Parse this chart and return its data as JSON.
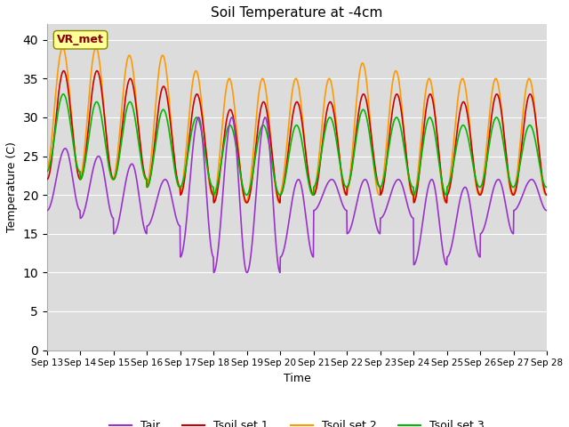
{
  "title": "Soil Temperature at -4cm",
  "xlabel": "Time",
  "ylabel": "Temperature (C)",
  "ylim": [
    0,
    42
  ],
  "yticks": [
    0,
    5,
    10,
    15,
    20,
    25,
    30,
    35,
    40
  ],
  "x_labels": [
    "Sep 13",
    "Sep 14",
    "Sep 15",
    "Sep 16",
    "Sep 17",
    "Sep 18",
    "Sep 19",
    "Sep 20",
    "Sep 21",
    "Sep 22",
    "Sep 23",
    "Sep 24",
    "Sep 25",
    "Sep 26",
    "Sep 27",
    "Sep 28"
  ],
  "color_tair": "#9933cc",
  "color_tsoil1": "#cc0000",
  "color_tsoil2": "#ff9900",
  "color_tsoil3": "#00bb00",
  "background_plot": "#dcdcdc",
  "background_fig": "#ffffff",
  "annotation_text": "VR_met",
  "annotation_color": "#880000",
  "annotation_bg": "#ffff99",
  "legend_labels": [
    "Tair",
    "Tsoil set 1",
    "Tsoil set 2",
    "Tsoil set 3"
  ],
  "tair_day_mins": [
    18,
    17,
    15,
    16,
    12,
    10,
    10,
    12,
    18,
    15,
    17,
    11,
    12,
    15,
    18
  ],
  "tair_day_maxs": [
    26,
    25,
    24,
    22,
    30,
    30,
    30,
    22,
    22,
    22,
    22,
    22,
    21,
    22,
    22
  ],
  "tsoil1_day_mins": [
    22,
    22,
    22,
    21,
    20,
    19,
    19,
    20,
    20,
    21,
    20,
    19,
    20,
    20,
    20
  ],
  "tsoil1_day_maxs": [
    36,
    36,
    35,
    34,
    33,
    31,
    32,
    32,
    32,
    33,
    33,
    33,
    32,
    33,
    33
  ],
  "tsoil2_day_mins": [
    23,
    22,
    22,
    21,
    20,
    19,
    19,
    20,
    20,
    20,
    20,
    19,
    20,
    20,
    20
  ],
  "tsoil2_day_maxs": [
    39,
    39,
    38,
    38,
    36,
    35,
    35,
    35,
    35,
    37,
    36,
    35,
    35,
    35,
    35
  ],
  "tsoil3_day_mins": [
    23,
    22,
    22,
    21,
    21,
    20,
    20,
    20,
    21,
    21,
    21,
    20,
    21,
    21,
    21
  ],
  "tsoil3_day_maxs": [
    33,
    32,
    32,
    31,
    30,
    29,
    29,
    29,
    30,
    31,
    30,
    30,
    29,
    30,
    29
  ]
}
